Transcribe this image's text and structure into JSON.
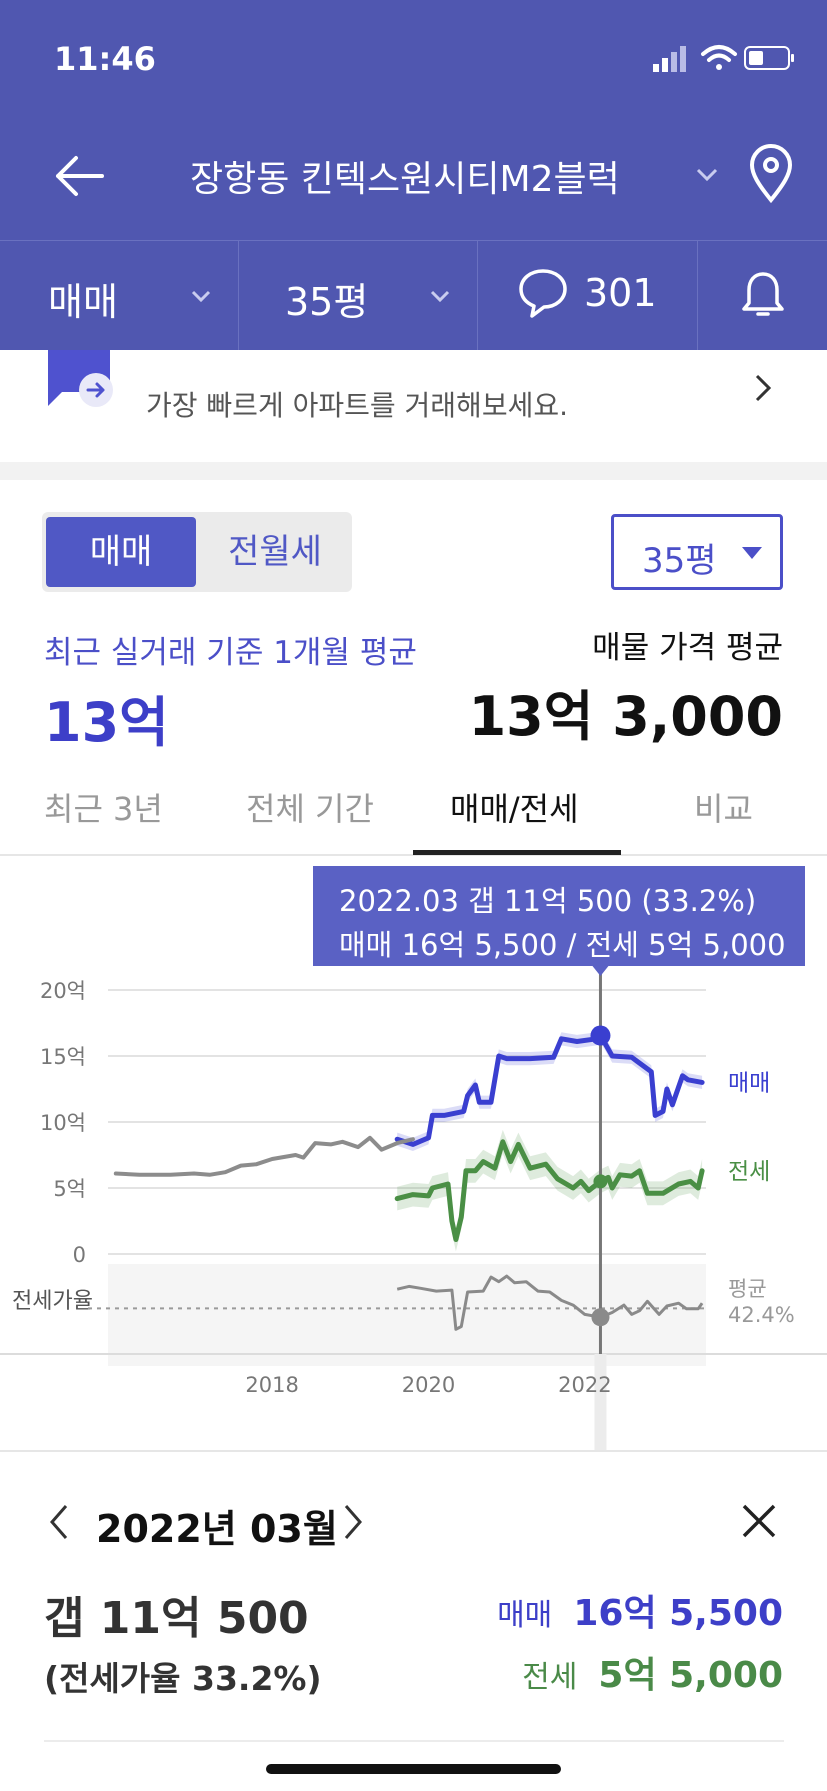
{
  "status_bar": {
    "time": "11:46"
  },
  "header": {
    "title": "장항동 킨텍스원시티M2블럭"
  },
  "filter_tabs": {
    "trade_type": "매매",
    "size": "35평",
    "comments_count": "301"
  },
  "promo": {
    "subtitle": "가장 빠르게 아파트를 거래해보세요."
  },
  "price_toggle": {
    "sale": "매매",
    "jeonse_monthly": "전월세",
    "size_select": "35평"
  },
  "summary": {
    "recent_label": "최근 실거래 기준 1개월 평균",
    "recent_value": "13억",
    "listing_label": "매물 가격 평균",
    "listing_value": "13억 3,000"
  },
  "period_tabs": [
    {
      "label": "최근 3년",
      "active": false
    },
    {
      "label": "전체 기간",
      "active": false
    },
    {
      "label": "매매/전세",
      "active": true
    },
    {
      "label": "비교",
      "active": false
    }
  ],
  "tooltip": {
    "line1": "2022.03  갭 11억 500 (33.2%)",
    "line2": "매매 16억 5,500 / 전세 5억 5,000"
  },
  "chart_data": {
    "type": "line",
    "x_ticks": [
      "2018",
      "2020",
      "2022"
    ],
    "y_ticks": [
      "20억",
      "15억",
      "10억",
      "5억",
      "0"
    ],
    "ylim": [
      0,
      20
    ],
    "yunit": "억",
    "ratio_label": "전세가율",
    "avg_label": "평균",
    "avg_value": "42.4%",
    "selected_x": 2022.2,
    "series": [
      {
        "name": "매매",
        "color": "#3a3fd0",
        "points": [
          [
            2019.6,
            8.7
          ],
          [
            2019.8,
            8.3
          ],
          [
            2020.0,
            8.8
          ],
          [
            2020.05,
            10.5
          ],
          [
            2020.2,
            10.5
          ],
          [
            2020.45,
            10.8
          ],
          [
            2020.5,
            12.0
          ],
          [
            2020.6,
            12.8
          ],
          [
            2020.65,
            11.5
          ],
          [
            2020.8,
            11.5
          ],
          [
            2020.9,
            15.0
          ],
          [
            2021.0,
            14.8
          ],
          [
            2021.3,
            14.8
          ],
          [
            2021.6,
            14.9
          ],
          [
            2021.7,
            16.3
          ],
          [
            2021.9,
            16.1
          ],
          [
            2022.15,
            16.3
          ],
          [
            2022.2,
            16.55
          ],
          [
            2022.35,
            15.0
          ],
          [
            2022.6,
            14.9
          ],
          [
            2022.85,
            13.8
          ],
          [
            2022.9,
            10.5
          ],
          [
            2023.0,
            10.8
          ],
          [
            2023.05,
            12.5
          ],
          [
            2023.12,
            11.3
          ],
          [
            2023.25,
            13.5
          ],
          [
            2023.32,
            13.2
          ],
          [
            2023.5,
            13.0
          ]
        ]
      },
      {
        "name": "전세",
        "color": "#4a8f45",
        "points": [
          [
            2019.6,
            4.2
          ],
          [
            2019.8,
            4.5
          ],
          [
            2020.0,
            4.4
          ],
          [
            2020.05,
            5.0
          ],
          [
            2020.25,
            5.3
          ],
          [
            2020.3,
            2.5
          ],
          [
            2020.35,
            1.1
          ],
          [
            2020.42,
            2.8
          ],
          [
            2020.48,
            6.3
          ],
          [
            2020.6,
            6.3
          ],
          [
            2020.7,
            7.0
          ],
          [
            2020.85,
            6.5
          ],
          [
            2020.95,
            8.5
          ],
          [
            2021.05,
            7.0
          ],
          [
            2021.15,
            8.3
          ],
          [
            2021.3,
            6.5
          ],
          [
            2021.5,
            6.8
          ],
          [
            2021.65,
            5.7
          ],
          [
            2021.85,
            5.0
          ],
          [
            2021.95,
            5.5
          ],
          [
            2022.05,
            4.8
          ],
          [
            2022.2,
            5.5
          ],
          [
            2022.3,
            5.8
          ],
          [
            2022.35,
            5.0
          ],
          [
            2022.45,
            6.0
          ],
          [
            2022.6,
            5.9
          ],
          [
            2022.7,
            6.3
          ],
          [
            2022.8,
            4.6
          ],
          [
            2023.0,
            4.6
          ],
          [
            2023.2,
            5.3
          ],
          [
            2023.35,
            5.5
          ],
          [
            2023.45,
            5.0
          ],
          [
            2023.5,
            6.3
          ]
        ]
      },
      {
        "name": "",
        "color": "#8c8c8c",
        "points": [
          [
            2016.0,
            6.1
          ],
          [
            2016.3,
            6.0
          ],
          [
            2016.7,
            6.0
          ],
          [
            2017.0,
            6.1
          ],
          [
            2017.2,
            6.0
          ],
          [
            2017.4,
            6.2
          ],
          [
            2017.6,
            6.7
          ],
          [
            2017.8,
            6.8
          ],
          [
            2018.0,
            7.2
          ],
          [
            2018.3,
            7.5
          ],
          [
            2018.4,
            7.3
          ],
          [
            2018.55,
            8.4
          ],
          [
            2018.75,
            8.3
          ],
          [
            2018.9,
            8.5
          ],
          [
            2019.1,
            8.1
          ],
          [
            2019.25,
            8.8
          ],
          [
            2019.4,
            7.9
          ],
          [
            2019.6,
            8.4
          ],
          [
            2019.8,
            8.7
          ]
        ]
      }
    ],
    "ratio_points": [
      [
        2019.6,
        63
      ],
      [
        2019.75,
        66
      ],
      [
        2019.9,
        64
      ],
      [
        2020.1,
        61
      ],
      [
        2020.3,
        62
      ],
      [
        2020.35,
        20
      ],
      [
        2020.42,
        23
      ],
      [
        2020.5,
        60
      ],
      [
        2020.7,
        61
      ],
      [
        2020.8,
        76
      ],
      [
        2020.9,
        71
      ],
      [
        2021.0,
        77
      ],
      [
        2021.1,
        70
      ],
      [
        2021.25,
        71
      ],
      [
        2021.4,
        61
      ],
      [
        2021.55,
        60
      ],
      [
        2021.7,
        51
      ],
      [
        2021.85,
        46
      ],
      [
        2022.0,
        36
      ],
      [
        2022.2,
        33
      ],
      [
        2022.35,
        38
      ],
      [
        2022.5,
        46
      ],
      [
        2022.6,
        36
      ],
      [
        2022.7,
        40
      ],
      [
        2022.8,
        50
      ],
      [
        2022.95,
        36
      ],
      [
        2023.05,
        45
      ],
      [
        2023.2,
        48
      ],
      [
        2023.3,
        42
      ],
      [
        2023.45,
        42
      ],
      [
        2023.5,
        48
      ]
    ]
  },
  "detail": {
    "month": "2022년 03월",
    "gap": "갭 11억 500",
    "ratio": "(전세가율 33.2%)",
    "sale_label": "매매",
    "sale_value": "16억 5,500",
    "jeonse_label": "전세",
    "jeonse_value": "5억 5,000"
  }
}
